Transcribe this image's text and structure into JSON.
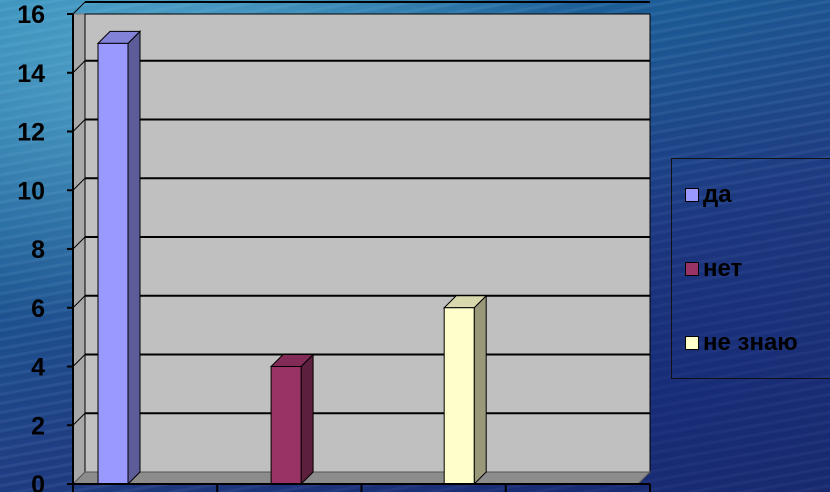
{
  "chart_data": {
    "type": "bar",
    "categories": [
      "да",
      "нет",
      "не знаю"
    ],
    "values": [
      15,
      4,
      6
    ],
    "colors": [
      "#9999ff",
      "#993366",
      "#ffffcc"
    ],
    "ylim": [
      0,
      16
    ],
    "yticks": [
      "0",
      "2",
      "4",
      "6",
      "8",
      "10",
      "12",
      "14",
      "16"
    ],
    "grid": true,
    "plot_background": "#c0c0c0",
    "legend_position": "right",
    "legend": [
      "да",
      "нет",
      "не знаю"
    ]
  }
}
